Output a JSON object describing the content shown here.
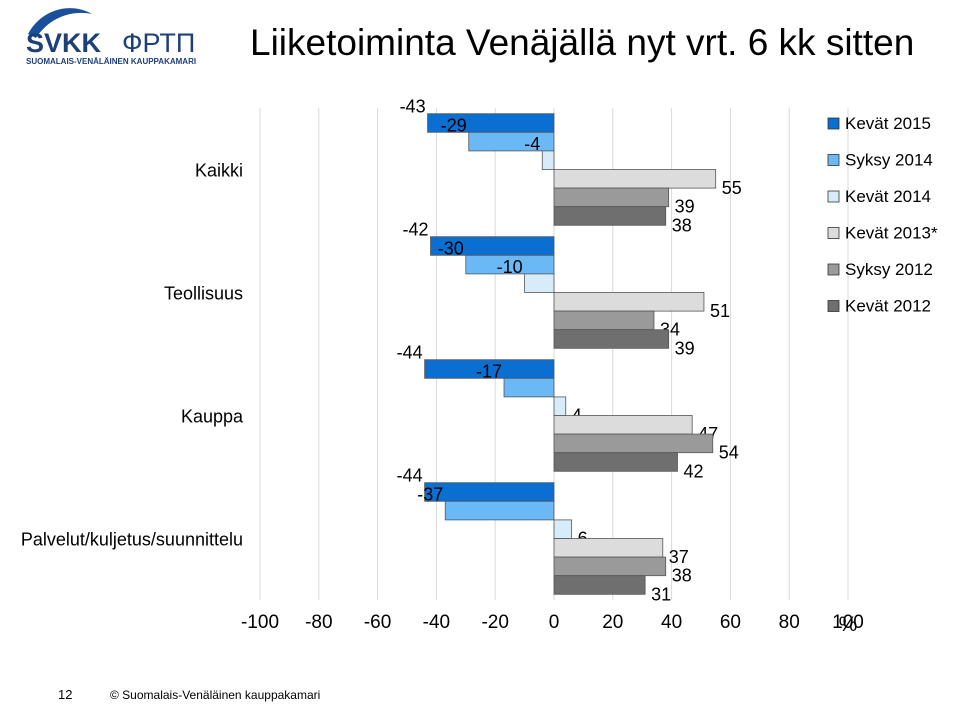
{
  "logo": {
    "brand_latin": "SVKK",
    "brand_cyrillic": "ФРТП",
    "tagline": "SUOMALAIS-VENÄLÄINEN KAUPPAKAMARI"
  },
  "slide_title": "Liiketoiminta Venäjällä nyt vrt. 6 kk sitten",
  "footer": {
    "page_number": "12",
    "copyright": "© Suomalais-Venäläinen kauppakamari"
  },
  "colors": {
    "Kevät 2015": "#0a6fd1",
    "Syksy 2014": "#6ab8f5",
    "Kevät 2014": "#d6ecfb",
    "Kevät 2013*": "#dcdcdc",
    "Syksy 2012": "#9a9a9a",
    "Kevät 2012": "#6f6f6f"
  },
  "chart_data": {
    "type": "bar",
    "orientation": "horizontal",
    "categories": [
      "Kaikki",
      "Teollisuus",
      "Kauppa",
      "Palvelut/kuljetus/suunnittelu"
    ],
    "series": [
      {
        "name": "Kevät 2015",
        "values": [
          -43,
          -42,
          -44,
          -44
        ]
      },
      {
        "name": "Syksy 2014",
        "values": [
          -29,
          -30,
          -17,
          -37
        ]
      },
      {
        "name": "Kevät 2014",
        "values": [
          -4,
          -10,
          4,
          6
        ]
      },
      {
        "name": "Kevät 2013*",
        "values": [
          55,
          51,
          47,
          37
        ]
      },
      {
        "name": "Syksy 2012",
        "values": [
          39,
          34,
          54,
          38
        ]
      },
      {
        "name": "Kevät 2012",
        "values": [
          38,
          39,
          42,
          31
        ]
      }
    ],
    "xlim": [
      -100,
      100
    ],
    "xticks": [
      "-100",
      "-80",
      "-60",
      "-40",
      "-20",
      "0",
      "20",
      "40",
      "60",
      "80",
      "100"
    ],
    "xunit": "%",
    "grid": "vertical",
    "legend": "top-right",
    "data_labels": true
  }
}
